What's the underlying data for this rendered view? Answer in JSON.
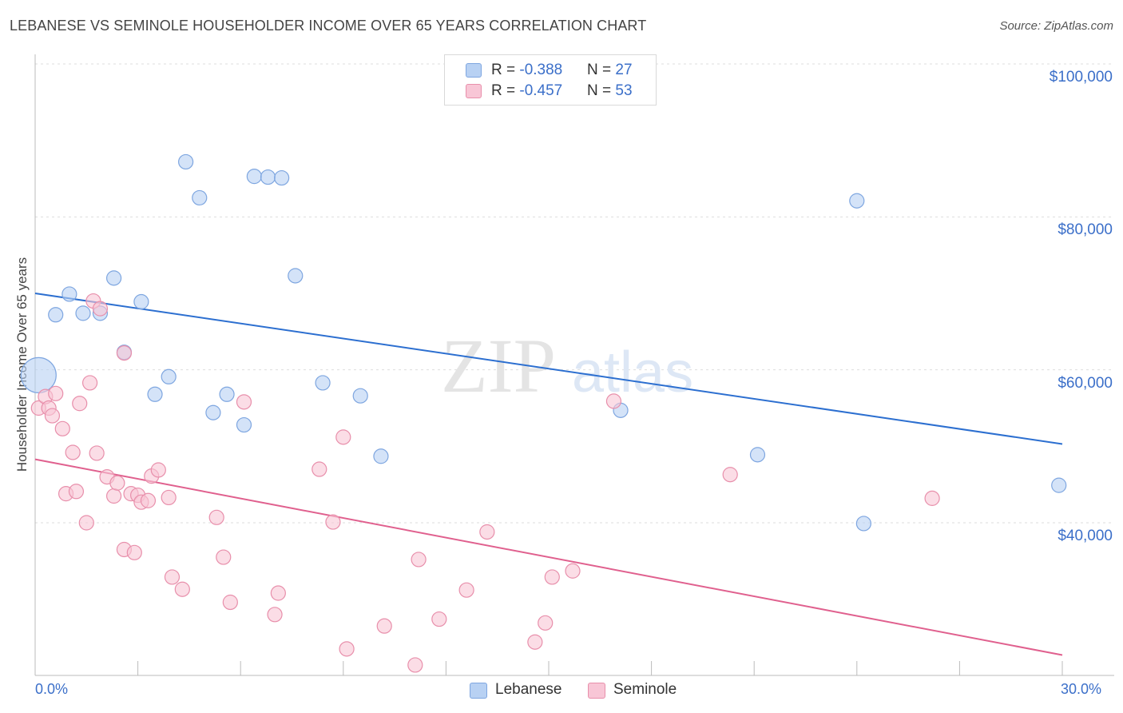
{
  "title": "LEBANESE VS SEMINOLE HOUSEHOLDER INCOME OVER 65 YEARS CORRELATION CHART",
  "source": "Source: ZipAtlas.com",
  "watermark": {
    "zip": "ZIP",
    "atlas": "atlas"
  },
  "colors": {
    "lebanese_fill": "#b8d1f3",
    "lebanese_stroke": "#7ea6e0",
    "lebanese_line": "#2c6fd0",
    "seminole_fill": "#f8c6d6",
    "seminole_stroke": "#e88fab",
    "seminole_line": "#e0608e",
    "axis_label": "#3b6fc9",
    "grid": "#dddddd"
  },
  "legend": {
    "lebanese": {
      "r_label": "R = ",
      "r_value": "-0.388",
      "n_label": "N = ",
      "n_value": "27"
    },
    "seminole": {
      "r_label": "R = ",
      "r_value": "-0.457",
      "n_label": "N = ",
      "n_value": "53"
    }
  },
  "bottom_legend": {
    "lebanese": "Lebanese",
    "seminole": "Seminole"
  },
  "chart_data": {
    "type": "scatter",
    "title": "LEBANESE VS SEMINOLE HOUSEHOLDER INCOME OVER 65 YEARS CORRELATION CHART",
    "xlabel": "",
    "ylabel": "Householder Income Over 65 years",
    "xlim": [
      0,
      30
    ],
    "ylim": [
      20000,
      102000
    ],
    "x_tick_labels": {
      "min": "0.0%",
      "max": "30.0%"
    },
    "y_ticks": [
      {
        "value": 100000,
        "label": "$100,000"
      },
      {
        "value": 80000,
        "label": "$80,000"
      },
      {
        "value": 60000,
        "label": "$60,000"
      },
      {
        "value": 40000,
        "label": "$40,000"
      }
    ],
    "grid": true,
    "legend_position": "top-center",
    "series": [
      {
        "name": "Lebanese",
        "r": -0.388,
        "n": 27,
        "trend": {
          "x": [
            0,
            30
          ],
          "y": [
            70000,
            50300
          ]
        },
        "points": [
          {
            "x": 0.1,
            "y": 59300,
            "big": true
          },
          {
            "x": 0.6,
            "y": 67200
          },
          {
            "x": 1.0,
            "y": 69900
          },
          {
            "x": 1.4,
            "y": 67400
          },
          {
            "x": 1.9,
            "y": 67400
          },
          {
            "x": 2.3,
            "y": 72000
          },
          {
            "x": 2.6,
            "y": 62300
          },
          {
            "x": 3.1,
            "y": 68900
          },
          {
            "x": 3.5,
            "y": 56800
          },
          {
            "x": 3.9,
            "y": 59100
          },
          {
            "x": 4.4,
            "y": 87200
          },
          {
            "x": 4.8,
            "y": 82500
          },
          {
            "x": 5.2,
            "y": 54400
          },
          {
            "x": 5.6,
            "y": 56800
          },
          {
            "x": 6.1,
            "y": 52800
          },
          {
            "x": 6.4,
            "y": 85300
          },
          {
            "x": 6.8,
            "y": 85200
          },
          {
            "x": 7.2,
            "y": 85100
          },
          {
            "x": 7.6,
            "y": 72300
          },
          {
            "x": 8.4,
            "y": 58300
          },
          {
            "x": 9.5,
            "y": 56600
          },
          {
            "x": 10.1,
            "y": 48700
          },
          {
            "x": 17.1,
            "y": 54700
          },
          {
            "x": 21.1,
            "y": 48900
          },
          {
            "x": 24.0,
            "y": 82100
          },
          {
            "x": 24.2,
            "y": 39900
          },
          {
            "x": 29.9,
            "y": 44900
          }
        ]
      },
      {
        "name": "Seminole",
        "r": -0.457,
        "n": 53,
        "trend": {
          "x": [
            0,
            30
          ],
          "y": [
            48300,
            22700
          ]
        },
        "points": [
          {
            "x": 0.1,
            "y": 55000
          },
          {
            "x": 0.3,
            "y": 56500
          },
          {
            "x": 0.4,
            "y": 55000
          },
          {
            "x": 0.5,
            "y": 54000
          },
          {
            "x": 0.6,
            "y": 56900
          },
          {
            "x": 0.8,
            "y": 52300
          },
          {
            "x": 0.9,
            "y": 43800
          },
          {
            "x": 1.1,
            "y": 49200
          },
          {
            "x": 1.2,
            "y": 44100
          },
          {
            "x": 1.3,
            "y": 55600
          },
          {
            "x": 1.5,
            "y": 40000
          },
          {
            "x": 1.6,
            "y": 58300
          },
          {
            "x": 1.7,
            "y": 69000
          },
          {
            "x": 1.8,
            "y": 49100
          },
          {
            "x": 1.9,
            "y": 68000
          },
          {
            "x": 2.1,
            "y": 46000
          },
          {
            "x": 2.3,
            "y": 43500
          },
          {
            "x": 2.4,
            "y": 45200
          },
          {
            "x": 2.6,
            "y": 62200
          },
          {
            "x": 2.6,
            "y": 36500
          },
          {
            "x": 2.8,
            "y": 43800
          },
          {
            "x": 2.9,
            "y": 36100
          },
          {
            "x": 3.0,
            "y": 43600
          },
          {
            "x": 3.1,
            "y": 42700
          },
          {
            "x": 3.3,
            "y": 42900
          },
          {
            "x": 3.4,
            "y": 46100
          },
          {
            "x": 3.6,
            "y": 46900
          },
          {
            "x": 3.9,
            "y": 43300
          },
          {
            "x": 4.0,
            "y": 32900
          },
          {
            "x": 4.3,
            "y": 31300
          },
          {
            "x": 5.3,
            "y": 40700
          },
          {
            "x": 5.5,
            "y": 35500
          },
          {
            "x": 5.7,
            "y": 29600
          },
          {
            "x": 6.1,
            "y": 55800
          },
          {
            "x": 7.0,
            "y": 28000
          },
          {
            "x": 7.1,
            "y": 30800
          },
          {
            "x": 8.3,
            "y": 47000
          },
          {
            "x": 8.7,
            "y": 40100
          },
          {
            "x": 9.0,
            "y": 51200
          },
          {
            "x": 9.1,
            "y": 23500
          },
          {
            "x": 10.2,
            "y": 26500
          },
          {
            "x": 11.1,
            "y": 21400
          },
          {
            "x": 11.2,
            "y": 35200
          },
          {
            "x": 11.8,
            "y": 27400
          },
          {
            "x": 12.6,
            "y": 31200
          },
          {
            "x": 13.2,
            "y": 38800
          },
          {
            "x": 14.6,
            "y": 24400
          },
          {
            "x": 14.9,
            "y": 26900
          },
          {
            "x": 15.1,
            "y": 32900
          },
          {
            "x": 15.7,
            "y": 33700
          },
          {
            "x": 16.9,
            "y": 55900
          },
          {
            "x": 20.3,
            "y": 46300
          },
          {
            "x": 26.2,
            "y": 43200
          }
        ]
      }
    ]
  }
}
